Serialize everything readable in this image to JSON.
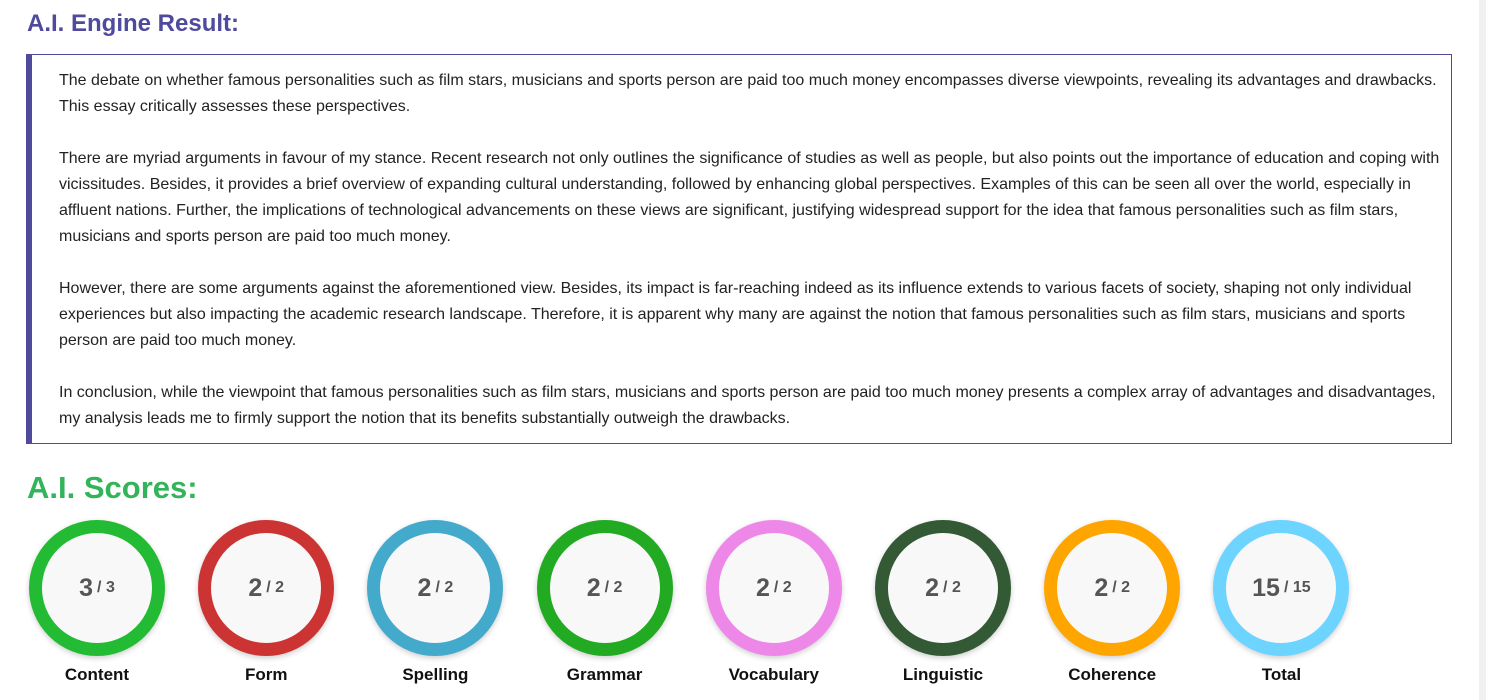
{
  "result": {
    "title": "A.I. Engine Result:",
    "paragraphs": [
      "The debate on whether famous personalities such as film stars, musicians and sports person are paid too much money encompasses diverse viewpoints, revealing its advantages and drawbacks. This essay critically assesses these perspectives.",
      "There are myriad arguments in favour of my stance. Recent research not only outlines the significance of studies as well as people, but also points out the importance of education and coping with vicissitudes. Besides, it provides a brief overview of expanding cultural understanding, followed by enhancing global perspectives. Examples of this can be seen all over the world, especially in affluent nations. Further, the implications of technological advancements on these views are significant, justifying widespread support for the idea that famous personalities such as film stars, musicians and sports person are paid too much money.",
      "However, there are some arguments against the aforementioned view. Besides, its impact is far-reaching indeed as its influence extends to various facets of society, shaping not only individual experiences but also impacting the academic research landscape. Therefore, it is apparent why many are against the notion that famous personalities such as film stars, musicians and sports person are paid too much money.",
      "In conclusion, while the viewpoint that famous personalities such as film stars, musicians and sports person are paid too much money presents a complex array of advantages and disadvantages, my analysis leads me to firmly support the notion that its benefits substantially outweigh the drawbacks."
    ]
  },
  "scores": {
    "title": "A.I. Scores:",
    "separator": "/",
    "items": [
      {
        "label": "Content",
        "score": 3,
        "max": 3,
        "color": "#22bb33"
      },
      {
        "label": "Form",
        "score": 2,
        "max": 2,
        "color": "#cc3333"
      },
      {
        "label": "Spelling",
        "score": 2,
        "max": 2,
        "color": "#44aacc"
      },
      {
        "label": "Grammar",
        "score": 2,
        "max": 2,
        "color": "#22aa22"
      },
      {
        "label": "Vocabulary",
        "score": 2,
        "max": 2,
        "color": "#ee88e8"
      },
      {
        "label": "Linguistic",
        "score": 2,
        "max": 2,
        "color": "#335a35"
      },
      {
        "label": "Coherence",
        "score": 2,
        "max": 2,
        "color": "#ffa500"
      },
      {
        "label": "Total",
        "score": 15,
        "max": 15,
        "color": "#6dd3ff"
      }
    ]
  }
}
